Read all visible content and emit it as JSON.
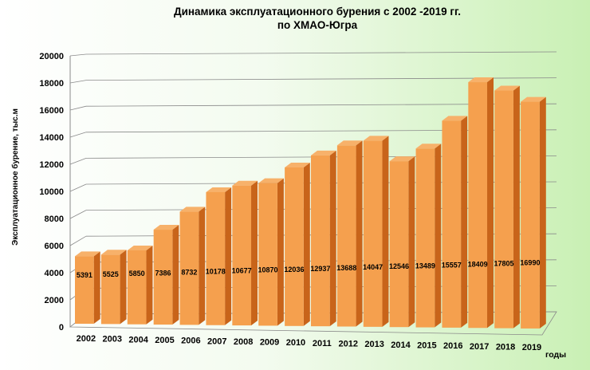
{
  "chart_data": {
    "type": "bar",
    "title": "Динамика эксплуатационного бурения с 2002 -2019 гг.",
    "subtitle": "по ХМАО-Югра",
    "xlabel": "годы",
    "ylabel": "Эксплуатационное бурение, тыс.м",
    "categories": [
      "2002",
      "2003",
      "2004",
      "2005",
      "2006",
      "2007",
      "2008",
      "2009",
      "2010",
      "2011",
      "2012",
      "2013",
      "2014",
      "2015",
      "2016",
      "2017",
      "2018",
      "2019"
    ],
    "values": [
      5391,
      5525,
      5850,
      7386,
      8732,
      10178,
      10677,
      10870,
      12036,
      12937,
      13688,
      14047,
      12546,
      13489,
      15557,
      18409,
      17805,
      16990
    ],
    "yticks": [
      0,
      2000,
      4000,
      6000,
      8000,
      10000,
      12000,
      14000,
      16000,
      18000,
      20000
    ],
    "ylim": [
      0,
      20000
    ],
    "grid": true,
    "legend": "none",
    "colors": {
      "front": "#f5a04e",
      "side": "#c8641a",
      "top": "#f7b16a"
    }
  }
}
